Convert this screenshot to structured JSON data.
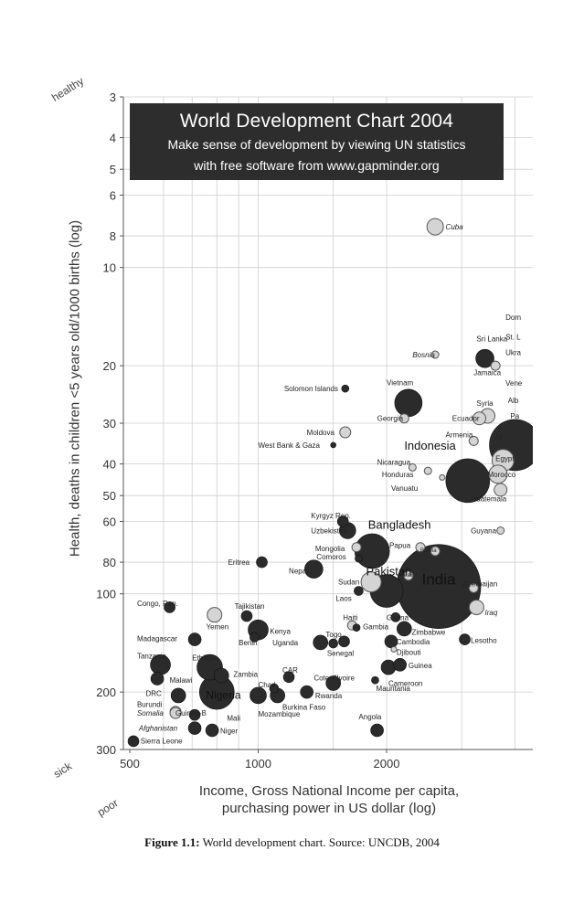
{
  "chart_data": {
    "type": "scatter",
    "title": "World Development Chart 2004",
    "subtitle_lines": [
      "Make sense of development by viewing UN statistics",
      "with free software from www.gapminder.org"
    ],
    "xlabel_lines": [
      "Income, Gross National Income per capita,",
      "purchasing power in US dollar (log)"
    ],
    "ylabel": "Health, deaths in children <5 years old/1000 births (log)",
    "x_scale": "log",
    "y_scale": "log",
    "y_inverted": true,
    "xlim": [
      500,
      4000
    ],
    "ylim": [
      3,
      300
    ],
    "x_ticks": [
      500,
      1000,
      2000
    ],
    "y_ticks": [
      3,
      4,
      5,
      6,
      8,
      10,
      20,
      30,
      40,
      50,
      60,
      80,
      100,
      200,
      300
    ],
    "corner_labels": {
      "top": "healthy",
      "bottom": "sick",
      "left": "poor"
    },
    "color_legend": {
      "dark": "#2b2b2b",
      "light": "#d4d4d4"
    },
    "points": [
      {
        "label": "Cuba",
        "x": 2600,
        "y": 7.5,
        "size": 9,
        "color": "light",
        "italic": true
      },
      {
        "label": "Sri Lanka",
        "x": 3400,
        "y": 19,
        "size": 10,
        "color": "dark"
      },
      {
        "label": "Bosnia",
        "x": 2600,
        "y": 18.5,
        "size": 4,
        "color": "light",
        "italic": true
      },
      {
        "label": "Jamaica",
        "x": 3600,
        "y": 20,
        "size": 5,
        "color": "light"
      },
      {
        "label": "Solomon Islands",
        "x": 1600,
        "y": 23.5,
        "size": 4,
        "color": "dark"
      },
      {
        "label": "Vietnam",
        "x": 2250,
        "y": 26,
        "size": 15,
        "color": "dark"
      },
      {
        "label": "Syria",
        "x": 3450,
        "y": 28.5,
        "size": 8,
        "color": "light"
      },
      {
        "label": "Georgia",
        "x": 2200,
        "y": 29,
        "size": 5,
        "color": "light"
      },
      {
        "label": "Ecuador",
        "x": 3300,
        "y": 29,
        "size": 7,
        "color": "light"
      },
      {
        "label": "Moldova",
        "x": 1600,
        "y": 32,
        "size": 6,
        "color": "light"
      },
      {
        "label": "Armenia",
        "x": 3200,
        "y": 34,
        "size": 5,
        "color": "light"
      },
      {
        "label": "West Bank & Gaza",
        "x": 1500,
        "y": 35,
        "size": 3,
        "color": "dark"
      },
      {
        "label": "Indonesia",
        "x": 3100,
        "y": 45,
        "size": 24,
        "color": "dark"
      },
      {
        "label": "Nicaragua",
        "x": 2300,
        "y": 41,
        "size": 4,
        "color": "light"
      },
      {
        "label": "Honduras",
        "x": 2500,
        "y": 42,
        "size": 4,
        "color": "light"
      },
      {
        "label": "Vanuatu",
        "x": 2700,
        "y": 44,
        "size": 3,
        "color": "light"
      },
      {
        "label": "Egypt",
        "x": 3750,
        "y": 39,
        "size": 12,
        "color": "light"
      },
      {
        "label": "Morocco",
        "x": 3650,
        "y": 43,
        "size": 10,
        "color": "light"
      },
      {
        "label": "Guatemala",
        "x": 3700,
        "y": 48,
        "size": 7,
        "color": "light"
      },
      {
        "label": "Kyrgyz Rep.",
        "x": 1580,
        "y": 60,
        "size": 6,
        "color": "dark"
      },
      {
        "label": "Uzbekistan",
        "x": 1620,
        "y": 64,
        "size": 9,
        "color": "dark"
      },
      {
        "label": "Bangladesh",
        "x": 1850,
        "y": 74,
        "size": 19,
        "color": "dark"
      },
      {
        "label": "Guyana",
        "x": 3700,
        "y": 64,
        "size": 4,
        "color": "light"
      },
      {
        "label": "Papua",
        "x": 2400,
        "y": 72,
        "size": 5,
        "color": "light"
      },
      {
        "label": "Bolivia",
        "x": 2600,
        "y": 74,
        "size": 5,
        "color": "light"
      },
      {
        "label": "Mongolia",
        "x": 1700,
        "y": 72,
        "size": 5,
        "color": "light"
      },
      {
        "label": "Comoros",
        "x": 1720,
        "y": 78,
        "size": 4,
        "color": "dark"
      },
      {
        "label": "Eritrea",
        "x": 1020,
        "y": 80,
        "size": 6,
        "color": "dark"
      },
      {
        "label": "Nepal",
        "x": 1350,
        "y": 84,
        "size": 10,
        "color": "dark"
      },
      {
        "label": "India",
        "x": 2650,
        "y": 95,
        "size": 46,
        "color": "dark"
      },
      {
        "label": "Sudan",
        "x": 1840,
        "y": 92,
        "size": 11,
        "color": "light"
      },
      {
        "label": "Pakistan",
        "x": 2000,
        "y": 98,
        "size": 18,
        "color": "dark"
      },
      {
        "label": "Mali2",
        "x": 2250,
        "y": 88,
        "size": 5,
        "color": "light"
      },
      {
        "label": "Azerbaijan",
        "x": 3200,
        "y": 96,
        "size": 5,
        "color": "light"
      },
      {
        "label": "Laos",
        "x": 1720,
        "y": 98,
        "size": 5,
        "color": "dark"
      },
      {
        "label": "Congo, Rep.",
        "x": 620,
        "y": 110,
        "size": 6,
        "color": "dark"
      },
      {
        "label": "Yemen",
        "x": 790,
        "y": 116,
        "size": 8,
        "color": "light"
      },
      {
        "label": "Tajikistan",
        "x": 940,
        "y": 117,
        "size": 6,
        "color": "dark"
      },
      {
        "label": "Iraq",
        "x": 3250,
        "y": 110,
        "size": 8,
        "color": "light"
      },
      {
        "label": "Kenya",
        "x": 1000,
        "y": 129,
        "size": 11,
        "color": "dark"
      },
      {
        "label": "Haiti",
        "x": 1660,
        "y": 125,
        "size": 5,
        "color": "light"
      },
      {
        "label": "Gambia",
        "x": 1700,
        "y": 127,
        "size": 4,
        "color": "dark"
      },
      {
        "label": "Ghana",
        "x": 2100,
        "y": 118,
        "size": 5,
        "color": "dark"
      },
      {
        "label": "Zimbabwe",
        "x": 2200,
        "y": 128,
        "size": 8,
        "color": "dark"
      },
      {
        "label": "Lesotho",
        "x": 3050,
        "y": 138,
        "size": 6,
        "color": "dark"
      },
      {
        "label": "Madagascar",
        "x": 710,
        "y": 138,
        "size": 7,
        "color": "dark"
      },
      {
        "label": "Benin",
        "x": 980,
        "y": 136,
        "size": 5,
        "color": "dark"
      },
      {
        "label": "Uganda",
        "x": 1400,
        "y": 141,
        "size": 8,
        "color": "dark"
      },
      {
        "label": "Togo",
        "x": 1500,
        "y": 142,
        "size": 5,
        "color": "dark"
      },
      {
        "label": "Senegal",
        "x": 1590,
        "y": 140,
        "size": 6,
        "color": "dark"
      },
      {
        "label": "Cambodia",
        "x": 2050,
        "y": 140,
        "size": 7,
        "color": "dark"
      },
      {
        "label": "Djibouti",
        "x": 2080,
        "y": 148,
        "size": 3,
        "color": "light"
      },
      {
        "label": "Tanzania",
        "x": 590,
        "y": 165,
        "size": 11,
        "color": "dark"
      },
      {
        "label": "Ethiopia",
        "x": 770,
        "y": 168,
        "size": 14,
        "color": "dark"
      },
      {
        "label": "Zambia",
        "x": 820,
        "y": 178,
        "size": 8,
        "color": "dark"
      },
      {
        "label": "Guinea",
        "x": 2150,
        "y": 165,
        "size": 7,
        "color": "dark"
      },
      {
        "label": "Cameroon",
        "x": 2020,
        "y": 168,
        "size": 8,
        "color": "dark"
      },
      {
        "label": "CAR",
        "x": 1180,
        "y": 180,
        "size": 6,
        "color": "dark"
      },
      {
        "label": "Malawi",
        "x": 580,
        "y": 182,
        "size": 7,
        "color": "dark"
      },
      {
        "label": "Cote d'Ivoire",
        "x": 1500,
        "y": 188,
        "size": 8,
        "color": "dark"
      },
      {
        "label": "Mauritania",
        "x": 1880,
        "y": 184,
        "size": 4,
        "color": "dark"
      },
      {
        "label": "Chad",
        "x": 1090,
        "y": 195,
        "size": 5,
        "color": "dark"
      },
      {
        "label": "DRC",
        "x": 650,
        "y": 205,
        "size": 8,
        "color": "dark"
      },
      {
        "label": "Nigeria",
        "x": 800,
        "y": 200,
        "size": 19,
        "color": "dark"
      },
      {
        "label": "Mozambique",
        "x": 1000,
        "y": 205,
        "size": 9,
        "color": "dark"
      },
      {
        "label": "Burkina Faso",
        "x": 1110,
        "y": 205,
        "size": 8,
        "color": "dark"
      },
      {
        "label": "Rwanda",
        "x": 1300,
        "y": 200,
        "size": 7,
        "color": "dark"
      },
      {
        "label": "Burundi",
        "x": 640,
        "y": 230,
        "size": 6,
        "color": "light"
      },
      {
        "label": "Somalia",
        "x": 640,
        "y": 232,
        "size": 6,
        "color": "light",
        "italic": true
      },
      {
        "label": "Guinea-B",
        "x": 710,
        "y": 235,
        "size": 6,
        "color": "dark"
      },
      {
        "label": "Angola",
        "x": 1900,
        "y": 262,
        "size": 7,
        "color": "dark"
      },
      {
        "label": "Afghanistan",
        "x": 710,
        "y": 258,
        "size": 7,
        "color": "dark",
        "italic": true
      },
      {
        "label": "Niger",
        "x": 780,
        "y": 262,
        "size": 7,
        "color": "dark"
      },
      {
        "label": "Sierra Leone",
        "x": 510,
        "y": 283,
        "size": 6,
        "color": "dark"
      },
      {
        "label": "Brazil-right",
        "x": 4000,
        "y": 35,
        "size": 28,
        "color": "dark"
      }
    ],
    "annotations": [
      {
        "text": "Cuba",
        "x": 2750,
        "y": 7.5,
        "italic": true,
        "size": 8
      },
      {
        "text": "Sri Lanka",
        "x": 3250,
        "y": 16.5,
        "size": 8
      },
      {
        "text": "Bosnia",
        "x": 2300,
        "y": 18.5,
        "italic": true,
        "size": 8
      },
      {
        "text": "Jamaica",
        "x": 3200,
        "y": 21,
        "size": 8
      },
      {
        "text": "Solomon Islands",
        "x": 1150,
        "y": 23.5,
        "size": 8
      },
      {
        "text": "Vietnam",
        "x": 2000,
        "y": 22.5,
        "size": 8
      },
      {
        "text": "Syria",
        "x": 3250,
        "y": 26,
        "size": 8
      },
      {
        "text": "Georgia",
        "x": 1900,
        "y": 29,
        "size": 8
      },
      {
        "text": "Ecuador",
        "x": 2850,
        "y": 29,
        "size": 8
      },
      {
        "text": "Moldova",
        "x": 1300,
        "y": 32,
        "size": 8
      },
      {
        "text": "Armenia",
        "x": 2750,
        "y": 32.5,
        "size": 8
      },
      {
        "text": "West Bank & Gaza",
        "x": 1000,
        "y": 35,
        "size": 8
      },
      {
        "text": "Indonesia",
        "x": 2200,
        "y": 35.5,
        "size": 13
      },
      {
        "text": "Nicaragua",
        "x": 1900,
        "y": 39.5,
        "size": 8
      },
      {
        "text": "Honduras",
        "x": 1950,
        "y": 43,
        "size": 8
      },
      {
        "text": "Vanuatu",
        "x": 2050,
        "y": 47.5,
        "size": 8
      },
      {
        "text": "Egypt",
        "x": 3600,
        "y": 38.5,
        "size": 8
      },
      {
        "text": "Morocco",
        "x": 3450,
        "y": 43,
        "size": 8
      },
      {
        "text": "Guatemala",
        "x": 3150,
        "y": 51,
        "size": 8
      },
      {
        "text": "Kyrgyz Rep.",
        "x": 1330,
        "y": 57.5,
        "size": 8
      },
      {
        "text": "Uzbekistan",
        "x": 1330,
        "y": 64,
        "size": 8
      },
      {
        "text": "Bangladesh",
        "x": 1810,
        "y": 62,
        "size": 13
      },
      {
        "text": "Guyana",
        "x": 3150,
        "y": 64,
        "size": 8
      },
      {
        "text": "Papua",
        "x": 2030,
        "y": 71,
        "size": 8
      },
      {
        "text": "Bolivia",
        "x": 2400,
        "y": 73,
        "size": 6
      },
      {
        "text": "Mongolia",
        "x": 1360,
        "y": 72.5,
        "size": 8
      },
      {
        "text": "Comoros",
        "x": 1370,
        "y": 77,
        "size": 8
      },
      {
        "text": "Eritrea",
        "x": 850,
        "y": 80,
        "size": 8
      },
      {
        "text": "Nepal",
        "x": 1180,
        "y": 85,
        "size": 8
      },
      {
        "text": "India",
        "x": 2420,
        "y": 92,
        "size": 17
      },
      {
        "text": "Pakistan",
        "x": 1790,
        "y": 86,
        "size": 13
      },
      {
        "text": "Sudan",
        "x": 1540,
        "y": 92,
        "size": 8
      },
      {
        "text": "Mali",
        "x": 2180,
        "y": 87,
        "size": 6
      },
      {
        "text": "Azerbaijan",
        "x": 3020,
        "y": 93,
        "size": 8
      },
      {
        "text": "Laos",
        "x": 1520,
        "y": 103,
        "size": 8
      },
      {
        "text": "Congo, Rep.",
        "x": 520,
        "y": 107,
        "size": 8
      },
      {
        "text": "Yemen",
        "x": 755,
        "y": 126,
        "size": 8
      },
      {
        "text": "Tajikistan",
        "x": 880,
        "y": 109,
        "size": 8
      },
      {
        "text": "Iraq",
        "x": 3400,
        "y": 114,
        "size": 8,
        "italic": true
      },
      {
        "text": "Kenya",
        "x": 1065,
        "y": 130,
        "size": 8
      },
      {
        "text": "Haiti",
        "x": 1580,
        "y": 118,
        "size": 8
      },
      {
        "text": "Gambia",
        "x": 1760,
        "y": 126,
        "size": 8
      },
      {
        "text": "Ghana",
        "x": 2000,
        "y": 118,
        "size": 8
      },
      {
        "text": "Zimbabwe",
        "x": 2290,
        "y": 131,
        "size": 8
      },
      {
        "text": "Lesotho",
        "x": 3150,
        "y": 139,
        "size": 8
      },
      {
        "text": "Madagascar",
        "x": 520,
        "y": 137,
        "size": 8
      },
      {
        "text": "Benin",
        "x": 900,
        "y": 141,
        "size": 8
      },
      {
        "text": "Uganda",
        "x": 1080,
        "y": 141,
        "size": 8
      },
      {
        "text": "Togo",
        "x": 1440,
        "y": 133,
        "size": 8
      },
      {
        "text": "Senegal",
        "x": 1450,
        "y": 152,
        "size": 8
      },
      {
        "text": "Cambodia",
        "x": 2110,
        "y": 140,
        "size": 8
      },
      {
        "text": "Djibouti",
        "x": 2110,
        "y": 151,
        "size": 8
      },
      {
        "text": "Tanzania",
        "x": 520,
        "y": 155,
        "size": 8
      },
      {
        "text": "Ethiopia",
        "x": 700,
        "y": 157,
        "size": 8
      },
      {
        "text": "Zambia",
        "x": 875,
        "y": 176,
        "size": 8
      },
      {
        "text": "Guinea",
        "x": 2250,
        "y": 166,
        "size": 8
      },
      {
        "text": "Cameroon",
        "x": 2020,
        "y": 188,
        "size": 8
      },
      {
        "text": "CAR",
        "x": 1140,
        "y": 171,
        "size": 8
      },
      {
        "text": "Malawi",
        "x": 620,
        "y": 184,
        "size": 8
      },
      {
        "text": "Cote d'Ivoire",
        "x": 1350,
        "y": 181,
        "size": 8
      },
      {
        "text": "Mauritania",
        "x": 1890,
        "y": 195,
        "size": 8
      },
      {
        "text": "Chad",
        "x": 1000,
        "y": 190,
        "size": 8
      },
      {
        "text": "DRC",
        "x": 545,
        "y": 202,
        "size": 8
      },
      {
        "text": "Nigeria",
        "x": 755,
        "y": 206,
        "size": 12
      },
      {
        "text": "Mozambique",
        "x": 1000,
        "y": 233,
        "size": 8
      },
      {
        "text": "Burkina Faso",
        "x": 1140,
        "y": 222,
        "size": 8
      },
      {
        "text": "Rwanda",
        "x": 1360,
        "y": 205,
        "size": 8
      },
      {
        "text": "Burundi",
        "x": 520,
        "y": 218,
        "size": 8
      },
      {
        "text": "Somalia",
        "x": 520,
        "y": 232,
        "size": 8,
        "italic": true
      },
      {
        "text": "Guinea-B",
        "x": 640,
        "y": 232,
        "size": 8
      },
      {
        "text": "Mali",
        "x": 845,
        "y": 240,
        "size": 8
      },
      {
        "text": "Angola",
        "x": 1720,
        "y": 238,
        "size": 8
      },
      {
        "text": "Afghanistan",
        "x": 525,
        "y": 258,
        "size": 8,
        "italic": true
      },
      {
        "text": "Niger",
        "x": 815,
        "y": 263,
        "size": 8
      },
      {
        "text": "Sierra Leone",
        "x": 530,
        "y": 282,
        "size": 8
      },
      {
        "text": "Dom",
        "x": 3800,
        "y": 14.2,
        "size": 8
      },
      {
        "text": "St. L",
        "x": 3800,
        "y": 16.3,
        "size": 8
      },
      {
        "text": "Ukra",
        "x": 3800,
        "y": 18.2,
        "size": 8
      },
      {
        "text": "Vene",
        "x": 3800,
        "y": 22.6,
        "size": 8
      },
      {
        "text": "Alb",
        "x": 3850,
        "y": 25.5,
        "size": 8
      },
      {
        "text": "Pa",
        "x": 3900,
        "y": 28.5,
        "size": 8
      },
      {
        "text": "Jo",
        "x": 3580,
        "y": 33,
        "size": 8
      }
    ]
  },
  "caption": {
    "label": "Figure 1.1:",
    "text": "World development chart. Source: UNCDB, 2004"
  }
}
